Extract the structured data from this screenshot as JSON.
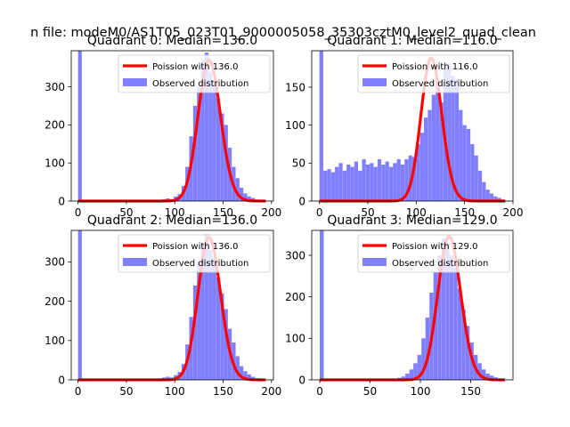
{
  "figure": {
    "suptitle": "n file: modeM0/AS1T05_023T01_9000005058_35303cztM0_level2_quad_clean"
  },
  "colors": {
    "hist": "#7f7fff",
    "poisson": "#ff0000",
    "axis": "#000000",
    "background": "#ffffff"
  },
  "chart_data": [
    {
      "type": "bar",
      "title": "Quadrant 0: Median=136.0",
      "median": 136.0,
      "xlim": [
        -7,
        202
      ],
      "ylim": [
        0,
        395
      ],
      "xticks": [
        0,
        50,
        100,
        150,
        200
      ],
      "yticks": [
        0,
        100,
        200,
        300
      ],
      "xtick_labels": [
        "0",
        "50",
        "100",
        "150",
        "200"
      ],
      "ytick_labels": [
        "0",
        "100",
        "200",
        "300"
      ],
      "bin_width": 3.9,
      "legend_position": "upper right",
      "series": [
        {
          "name": "Poission with 136.0",
          "kind": "line",
          "lambda": 136.0,
          "scale": 370
        },
        {
          "name": "Observed distribution",
          "kind": "histogram",
          "x": [
            0,
            71,
            75,
            79,
            83,
            87,
            91,
            95,
            99,
            103,
            107,
            111,
            115,
            119,
            123,
            127,
            131,
            135,
            139,
            143,
            147,
            151,
            155,
            159,
            163,
            167,
            171,
            175,
            179,
            183,
            187
          ],
          "values": [
            395,
            1,
            1,
            2,
            3,
            5,
            7,
            5,
            12,
            18,
            40,
            90,
            170,
            250,
            300,
            370,
            390,
            340,
            320,
            270,
            230,
            200,
            140,
            90,
            60,
            35,
            20,
            12,
            8,
            4,
            2
          ]
        }
      ]
    },
    {
      "type": "bar",
      "title": "Quadrant 1: Median=116.0",
      "median": 116.0,
      "xlim": [
        -8,
        200
      ],
      "ylim": [
        0,
        198
      ],
      "xticks": [
        0,
        50,
        100,
        150,
        200
      ],
      "yticks": [
        0,
        50,
        100,
        150
      ],
      "xtick_labels": [
        "0",
        "50",
        "100",
        "150",
        "200"
      ],
      "ytick_labels": [
        "0",
        "50",
        "100",
        "150"
      ],
      "bin_width": 3.9,
      "legend_position": "upper right",
      "series": [
        {
          "name": "Poission with 116.0",
          "kind": "line",
          "lambda": 116.0,
          "scale": 188
        },
        {
          "name": "Observed distribution",
          "kind": "histogram",
          "x": [
            0,
            4,
            8,
            12,
            16,
            20,
            24,
            28,
            32,
            36,
            40,
            44,
            48,
            52,
            56,
            60,
            64,
            68,
            72,
            76,
            80,
            84,
            88,
            92,
            96,
            100,
            104,
            108,
            112,
            116,
            120,
            124,
            128,
            132,
            136,
            140,
            144,
            148,
            152,
            156,
            160,
            164,
            168,
            172,
            176,
            180,
            184,
            188
          ],
          "values": [
            198,
            40,
            42,
            38,
            45,
            50,
            40,
            48,
            45,
            52,
            40,
            55,
            48,
            50,
            45,
            55,
            48,
            52,
            45,
            50,
            55,
            48,
            55,
            60,
            58,
            75,
            90,
            110,
            120,
            140,
            160,
            130,
            175,
            180,
            165,
            160,
            120,
            100,
            95,
            75,
            60,
            40,
            25,
            15,
            10,
            6,
            4,
            2
          ]
        }
      ]
    },
    {
      "type": "bar",
      "title": "Quadrant 2: Median=136.0",
      "median": 136.0,
      "xlim": [
        -7,
        202
      ],
      "ylim": [
        0,
        380
      ],
      "xticks": [
        0,
        50,
        100,
        150,
        200
      ],
      "yticks": [
        0,
        100,
        200,
        300
      ],
      "xtick_labels": [
        "0",
        "50",
        "100",
        "150",
        "200"
      ],
      "ytick_labels": [
        "0",
        "100",
        "200",
        "300"
      ],
      "bin_width": 3.9,
      "legend_position": "upper right",
      "series": [
        {
          "name": "Poission with 136.0",
          "kind": "line",
          "lambda": 136.0,
          "scale": 362
        },
        {
          "name": "Observed distribution",
          "kind": "histogram",
          "x": [
            0,
            71,
            75,
            79,
            83,
            87,
            91,
            95,
            99,
            103,
            107,
            111,
            115,
            119,
            123,
            127,
            131,
            135,
            139,
            143,
            147,
            151,
            155,
            159,
            163,
            167,
            171,
            175,
            179,
            183,
            187
          ],
          "values": [
            380,
            1,
            1,
            2,
            4,
            6,
            8,
            6,
            12,
            20,
            40,
            90,
            160,
            240,
            300,
            350,
            370,
            330,
            310,
            260,
            220,
            180,
            130,
            95,
            60,
            35,
            22,
            14,
            8,
            4,
            2
          ]
        }
      ]
    },
    {
      "type": "bar",
      "title": "Quadrant 3: Median=129.0",
      "median": 129.0,
      "xlim": [
        -8,
        192
      ],
      "ylim": [
        0,
        360
      ],
      "xticks": [
        0,
        50,
        100,
        150
      ],
      "yticks": [
        0,
        100,
        200,
        300
      ],
      "xtick_labels": [
        "0",
        "50",
        "100",
        "150"
      ],
      "ytick_labels": [
        "0",
        "100",
        "200",
        "300"
      ],
      "bin_width": 3.9,
      "legend_position": "upper right",
      "series": [
        {
          "name": "Poission with 129.0",
          "kind": "line",
          "lambda": 129.0,
          "scale": 345
        },
        {
          "name": "Observed distribution",
          "kind": "histogram",
          "x": [
            0,
            65,
            69,
            73,
            77,
            81,
            85,
            89,
            93,
            97,
            101,
            105,
            109,
            113,
            117,
            121,
            125,
            129,
            133,
            137,
            141,
            145,
            149,
            153,
            157,
            161,
            165,
            169,
            173,
            177
          ],
          "values": [
            360,
            1,
            2,
            3,
            5,
            8,
            15,
            25,
            40,
            60,
            100,
            150,
            210,
            260,
            300,
            340,
            330,
            300,
            270,
            220,
            170,
            130,
            90,
            60,
            40,
            25,
            15,
            10,
            6,
            3
          ]
        }
      ]
    }
  ]
}
